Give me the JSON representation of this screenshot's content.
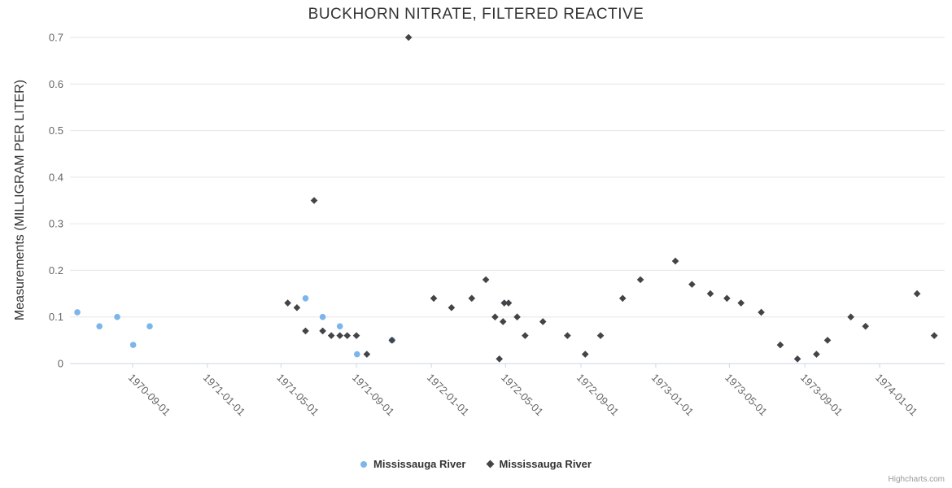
{
  "chart": {
    "credit": "Highcharts.com"
  },
  "chart_data": {
    "type": "scatter",
    "title": "BUCKHORN NITRATE, FILTERED REACTIVE",
    "xlabel": "",
    "ylabel": "Measurements (MILLIGRAM PER LITER)",
    "grid": true,
    "legend_position": "bottom-center",
    "colors": {
      "grid": "#e6e6e6",
      "axis": "#ccd6eb",
      "title_text": "#333333",
      "tick_text": "#666666"
    },
    "xaxis": {
      "type": "datetime",
      "min": "1970-05-22",
      "max": "1974-04-17",
      "ticks": [
        "1970-09-01",
        "1971-01-01",
        "1971-05-01",
        "1971-09-01",
        "1972-01-01",
        "1972-05-01",
        "1972-09-01",
        "1973-01-01",
        "1973-05-01",
        "1973-09-01",
        "1974-01-01"
      ]
    },
    "yaxis": {
      "min": 0,
      "max": 0.7,
      "title": "Measurements (MILLIGRAM PER LITER)",
      "ticks": [
        "0",
        "0.1",
        "0.2",
        "0.3",
        "0.4",
        "0.5",
        "0.6",
        "0.7"
      ]
    },
    "series": [
      {
        "name": "Mississauga River",
        "marker": "circle",
        "color": "#7cb5ec",
        "points": [
          [
            "1970-06-03",
            0.11
          ],
          [
            "1970-07-09",
            0.08
          ],
          [
            "1970-08-07",
            0.1
          ],
          [
            "1970-09-02",
            0.04
          ],
          [
            "1970-09-29",
            0.08
          ],
          [
            "1971-06-10",
            0.14
          ],
          [
            "1971-07-08",
            0.1
          ],
          [
            "1971-08-05",
            0.08
          ],
          [
            "1971-09-02",
            0.02
          ],
          [
            "1971-10-29",
            0.05
          ]
        ]
      },
      {
        "name": "Mississauga River",
        "marker": "diamond",
        "color": "#434348",
        "points": [
          [
            "1971-05-12",
            0.13
          ],
          [
            "1971-05-27",
            0.12
          ],
          [
            "1971-06-10",
            0.07
          ],
          [
            "1971-06-24",
            0.35
          ],
          [
            "1971-07-08",
            0.07
          ],
          [
            "1971-07-22",
            0.06
          ],
          [
            "1971-08-05",
            0.06
          ],
          [
            "1971-08-17",
            0.06
          ],
          [
            "1971-09-01",
            0.06
          ],
          [
            "1971-09-18",
            0.02
          ],
          [
            "1971-10-29",
            0.05
          ],
          [
            "1971-11-25",
            0.7
          ],
          [
            "1972-01-05",
            0.14
          ],
          [
            "1972-02-03",
            0.12
          ],
          [
            "1972-03-07",
            0.14
          ],
          [
            "1972-03-30",
            0.18
          ],
          [
            "1972-04-14",
            0.1
          ],
          [
            "1972-04-21",
            0.01
          ],
          [
            "1972-04-27",
            0.09
          ],
          [
            "1972-04-29",
            0.13
          ],
          [
            "1972-05-06",
            0.13
          ],
          [
            "1972-05-20",
            0.1
          ],
          [
            "1972-06-02",
            0.06
          ],
          [
            "1972-07-01",
            0.09
          ],
          [
            "1972-08-10",
            0.06
          ],
          [
            "1972-09-08",
            0.02
          ],
          [
            "1972-10-03",
            0.06
          ],
          [
            "1972-11-08",
            0.14
          ],
          [
            "1972-12-07",
            0.18
          ],
          [
            "1973-02-02",
            0.22
          ],
          [
            "1973-03-01",
            0.17
          ],
          [
            "1973-03-31",
            0.15
          ],
          [
            "1973-04-27",
            0.14
          ],
          [
            "1973-05-20",
            0.13
          ],
          [
            "1973-06-22",
            0.11
          ],
          [
            "1973-07-23",
            0.04
          ],
          [
            "1973-08-20",
            0.01
          ],
          [
            "1973-09-20",
            0.02
          ],
          [
            "1973-10-08",
            0.05
          ],
          [
            "1973-11-15",
            0.1
          ],
          [
            "1973-12-09",
            0.08
          ],
          [
            "1974-03-03",
            0.15
          ],
          [
            "1974-03-31",
            0.06
          ]
        ]
      }
    ]
  }
}
